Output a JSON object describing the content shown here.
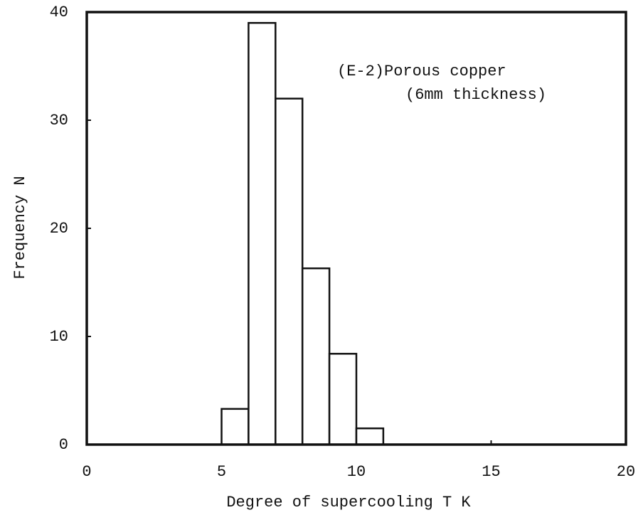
{
  "chart_data": {
    "type": "histogram",
    "xlabel": "Degree of supercooling  T K",
    "ylabel": "Frequency  N",
    "annotations": [
      "(E-2)Porous copper",
      "(6mm thickness)"
    ],
    "bins": [
      5,
      6,
      7,
      8,
      9,
      10,
      11
    ],
    "values": [
      3.3,
      39,
      32,
      16.3,
      8.4,
      1.5
    ],
    "color": "#ffffff",
    "xlim": [
      0,
      20
    ],
    "xticks": [
      0,
      5,
      10,
      15,
      20
    ],
    "ylim": [
      0,
      40
    ],
    "yticks": [
      0,
      10,
      20,
      30,
      40
    ],
    "grid": false
  }
}
